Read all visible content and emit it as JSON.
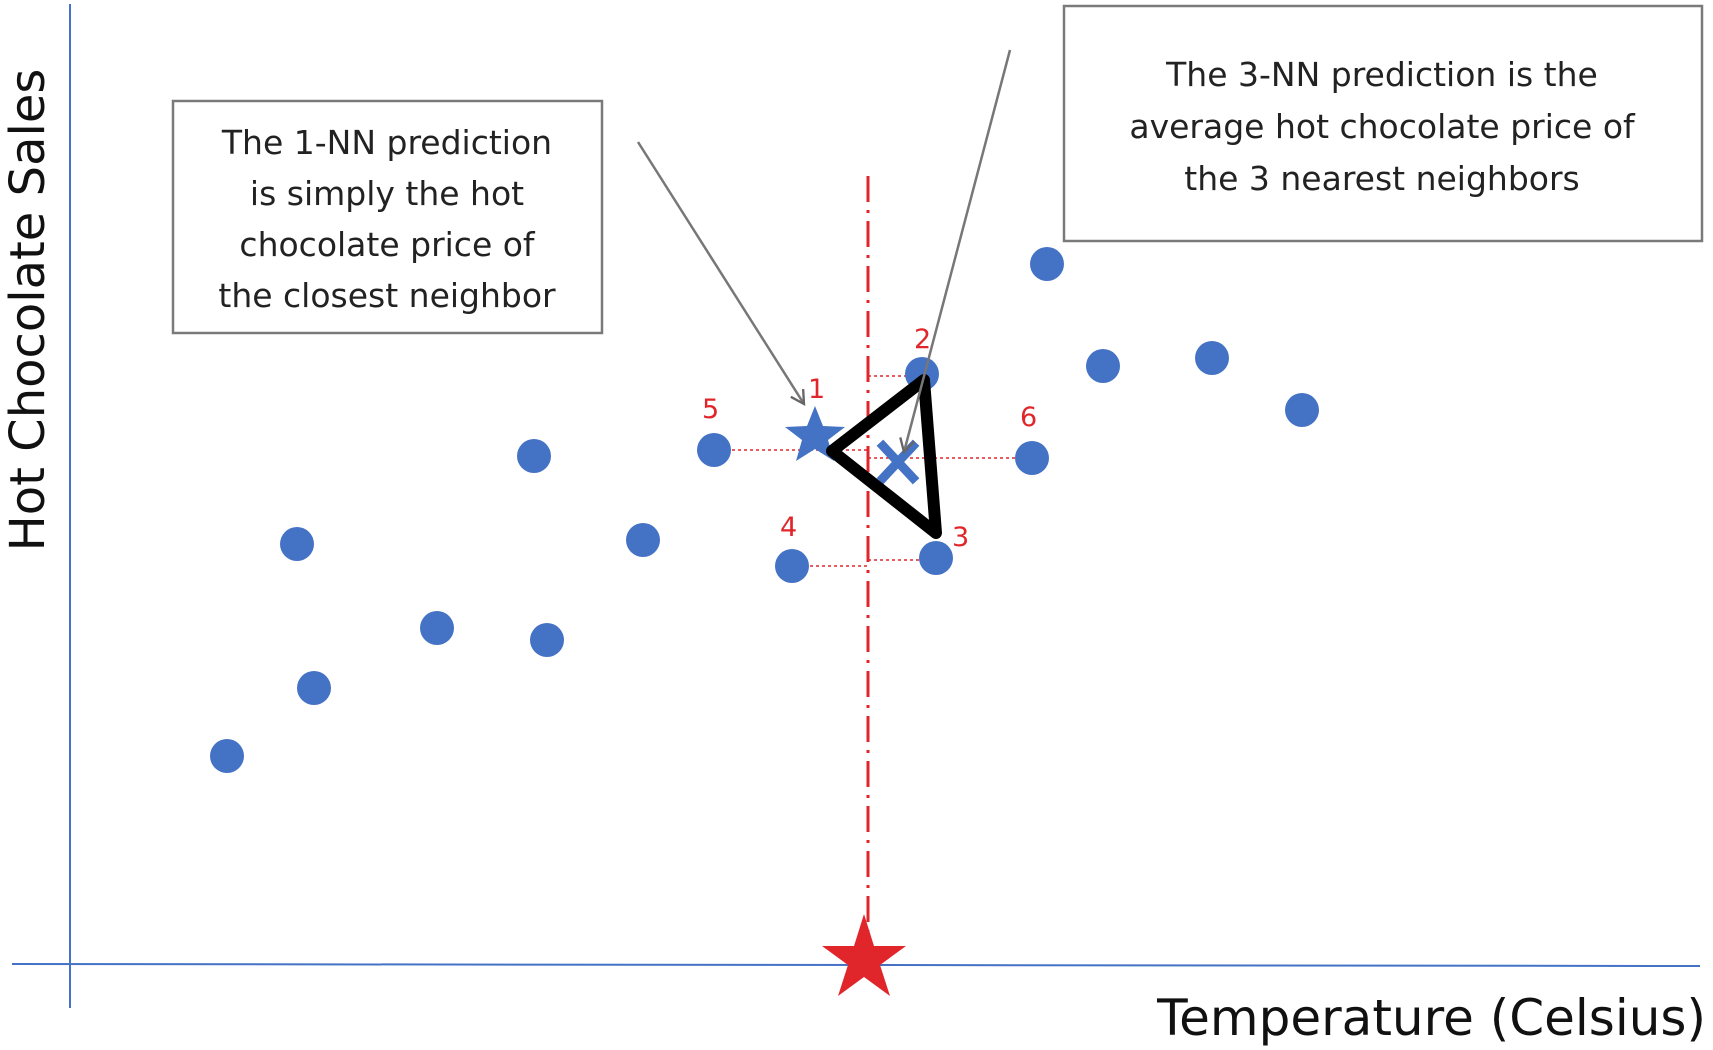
{
  "diagram": {
    "y_axis_label": "Hot Chocolate Sales",
    "x_axis_label": "Temperature (Celsius)",
    "callouts": {
      "one_nn": [
        "The 1-NN prediction",
        "is simply the hot",
        "chocolate price of",
        "the closest neighbor"
      ],
      "three_nn": [
        "The 3-NN prediction is the",
        "average hot chocolate price of",
        "the 3 nearest neighbors"
      ]
    },
    "neighbor_labels": [
      "1",
      "2",
      "3",
      "4",
      "5",
      "6"
    ],
    "colors": {
      "point": "#4472c4",
      "axis": "#4472c4",
      "query": "#e0262b",
      "guide": "#e0262b",
      "triangle": "#000000"
    }
  }
}
